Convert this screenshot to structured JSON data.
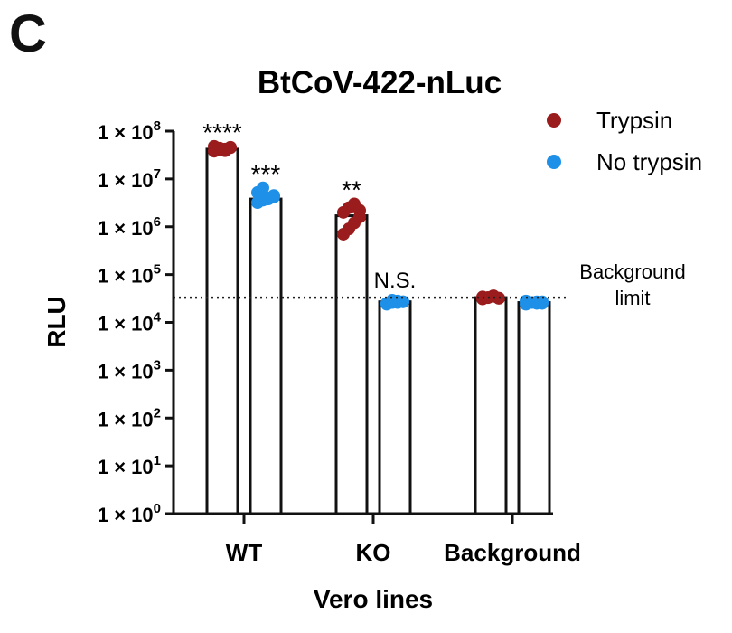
{
  "panel_letter": "C",
  "chart_data": {
    "type": "bar",
    "title": "BtCoV-422-nLuc",
    "xlabel": "Vero lines",
    "ylabel": "RLU",
    "yscale": "log",
    "ylim": [
      1,
      100000000
    ],
    "ytick_labels": [
      {
        "base": "1 × 10",
        "exp": "0",
        "value": 1
      },
      {
        "base": "1 × 10",
        "exp": "1",
        "value": 10
      },
      {
        "base": "1 × 10",
        "exp": "2",
        "value": 100
      },
      {
        "base": "1 × 10",
        "exp": "3",
        "value": 1000
      },
      {
        "base": "1 × 10",
        "exp": "4",
        "value": 10000
      },
      {
        "base": "1 × 10",
        "exp": "5",
        "value": 100000
      },
      {
        "base": "1 × 10",
        "exp": "6",
        "value": 1000000
      },
      {
        "base": "1 × 10",
        "exp": "7",
        "value": 10000000
      },
      {
        "base": "1 × 10",
        "exp": "8",
        "value": 100000000
      }
    ],
    "categories": [
      "WT",
      "KO",
      "Background"
    ],
    "series": [
      {
        "name": "Trypsin",
        "color": "#9b1c1c",
        "values": [
          42000000,
          1700000,
          33000
        ],
        "points": [
          [
            38000000,
            40000000,
            42000000,
            45000000,
            48000000,
            44000000,
            39000000,
            46000000
          ],
          [
            700000,
            900000,
            1200000,
            1600000,
            2000000,
            2500000,
            3000000,
            2200000
          ],
          [
            31000,
            33000,
            35000,
            32000,
            34000,
            33000,
            36000,
            32000
          ]
        ],
        "significance": [
          "****",
          "**",
          ""
        ]
      },
      {
        "name": "No trypsin",
        "color": "#1e90e8",
        "values": [
          3800000,
          27000,
          26000
        ],
        "points": [
          [
            3200000,
            3600000,
            4000000,
            4500000,
            5200000,
            6500000,
            3800000,
            4200000
          ],
          [
            24000,
            26000,
            28000,
            27000,
            25000,
            29000,
            26000,
            27000
          ],
          [
            24000,
            26000,
            27000,
            25000,
            28000,
            26000,
            25000,
            27000
          ]
        ],
        "significance": [
          "***",
          "N.S.",
          ""
        ]
      }
    ],
    "reference_line": {
      "label": "Background limit",
      "label_lines": [
        "Background",
        "limit"
      ],
      "value": 33000,
      "style": "dotted"
    },
    "legend": {
      "position": "top-right",
      "entries": [
        "Trypsin",
        "No trypsin"
      ]
    },
    "grid": false
  }
}
